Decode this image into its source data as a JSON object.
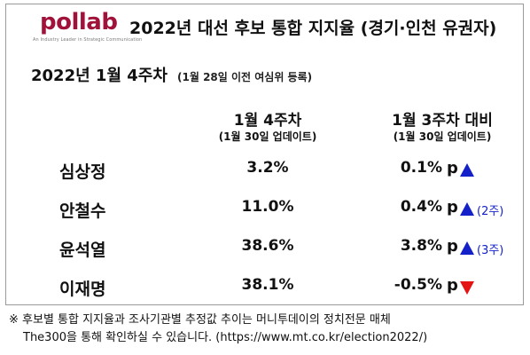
{
  "header": {
    "logo_text": "pollab",
    "logo_tagline": "An Industry Leader in Strategic Communication",
    "title": "2022년 대선 후보 통합 지지율 (경기·인천 유권자)"
  },
  "subheader": {
    "period": "2022년  1월  4주차",
    "note": "(1월 28일 이전 여심위 등록)"
  },
  "columns": {
    "current": {
      "title": "1월 4주차",
      "sub": "(1월 30일 업데이트)"
    },
    "change": {
      "title": "1월 3주차 대비",
      "sub": "(1월 30일 업데이트)"
    }
  },
  "rows": [
    {
      "name": "심상정",
      "current": "3.2%",
      "change": "0.1%",
      "unit": "p",
      "direction": "up",
      "streak": ""
    },
    {
      "name": "안철수",
      "current": "11.0%",
      "change": "0.4%",
      "unit": "p",
      "direction": "up",
      "streak": "(2주)"
    },
    {
      "name": "윤석열",
      "current": "38.6%",
      "change": "3.8%",
      "unit": "p",
      "direction": "up",
      "streak": "(3주)"
    },
    {
      "name": "이재명",
      "current": "38.1%",
      "change": "-0.5%",
      "unit": "p",
      "direction": "down",
      "streak": ""
    }
  ],
  "colors": {
    "brand": "#a1123a",
    "up": "#1420c8",
    "down": "#e41414"
  },
  "footnote": {
    "line1": "※ 후보별 통합 지지율과 조사기관별 추정값 추이는 머니투데이의 정치전문 매체",
    "line2": "The300을 통해 확인하실 수 있습니다. (https://www.mt.co.kr/election2022/)"
  }
}
